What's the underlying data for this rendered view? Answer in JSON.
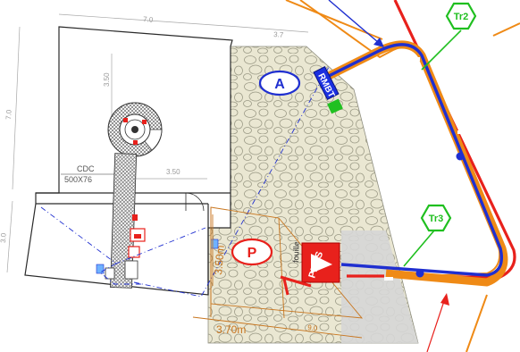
{
  "dimensions": {
    "top_width": "7.0",
    "side_height_top": "7.0",
    "side_height_bottom": "3.0",
    "tower_height": "3.50",
    "tower_width": "3.50",
    "strip_width": "3.7",
    "parking_depth": "9.0",
    "parking_height": "3.50m",
    "parking_width": "3.70m"
  },
  "labels": {
    "cdc_name": "CDC",
    "cdc_size": "500X76",
    "zone_a": "A",
    "zone_p": "P",
    "rmbt": "RMBT",
    "prcs": "PRCS",
    "fouille": "fouille",
    "tr2": "Tr2",
    "tr3": "Tr3"
  },
  "colors": {
    "red_route": "#e8211c",
    "blue_cable": "#1f2fd0",
    "orange_line": "#ef8a16",
    "green_tag": "#1fbf1f",
    "gravel_fill": "#e9e6cf",
    "grey_zone": "#d6d6d6",
    "plan_line": "#2a2a2a"
  }
}
